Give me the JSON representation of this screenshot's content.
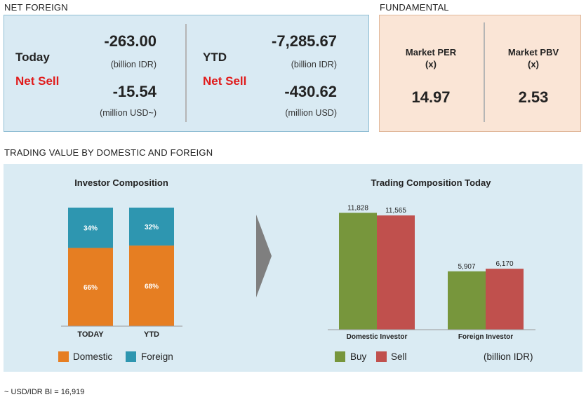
{
  "net_foreign": {
    "section_title": "NET FOREIGN",
    "today": {
      "label": "Today",
      "status": "Net Sell",
      "idr_value": "-263.00",
      "idr_unit": "(billion IDR)",
      "usd_value": "-15.54",
      "usd_unit": "(million USD~)"
    },
    "ytd": {
      "label": "YTD",
      "status": "Net Sell",
      "idr_value": "-7,285.67",
      "idr_unit": "(billion IDR)",
      "usd_value": "-430.62",
      "usd_unit": "(million USD)"
    },
    "colors": {
      "panel_bg": "#d9eaf3",
      "net_sell": "#e01b1b"
    }
  },
  "fundamental": {
    "section_title": "FUNDAMENTAL",
    "per": {
      "label": "Market PER",
      "unit": "(x)",
      "value": "14.97"
    },
    "pbv": {
      "label": "Market PBV",
      "unit": "(x)",
      "value": "2.53"
    },
    "colors": {
      "panel_bg": "#fae5d6"
    }
  },
  "trading_value": {
    "section_title": "TRADING VALUE BY DOMESTIC AND FOREIGN",
    "arrow_icon": "chevron-right-icon",
    "unit_note": "(billion IDR)"
  },
  "footnote": "~ USD/IDR BI = 16,919",
  "chart_data": [
    {
      "type": "bar",
      "stacked": true,
      "percent": true,
      "title": "Investor Composition",
      "categories": [
        "TODAY",
        "YTD"
      ],
      "series": [
        {
          "name": "Domestic",
          "values": [
            66,
            68
          ],
          "labels": [
            "66%",
            "68%"
          ],
          "color": "#e67e22"
        },
        {
          "name": "Foreign",
          "values": [
            34,
            32
          ],
          "labels": [
            "34%",
            "32%"
          ],
          "color": "#2e96b0"
        }
      ],
      "ylim": [
        0,
        100
      ],
      "legend": "bottom"
    },
    {
      "type": "bar",
      "title": "Trading Composition Today",
      "categories": [
        "Domestic Investor",
        "Foreign Investor"
      ],
      "series": [
        {
          "name": "Buy",
          "values": [
            11828,
            5907
          ],
          "labels": [
            "11,828",
            "5,907"
          ],
          "color": "#77963c"
        },
        {
          "name": "Sell",
          "values": [
            11565,
            6170
          ],
          "labels": [
            "11,565",
            "6,170"
          ],
          "color": "#c0504d"
        }
      ],
      "ylim": [
        0,
        12500
      ],
      "legend": "bottom"
    }
  ]
}
